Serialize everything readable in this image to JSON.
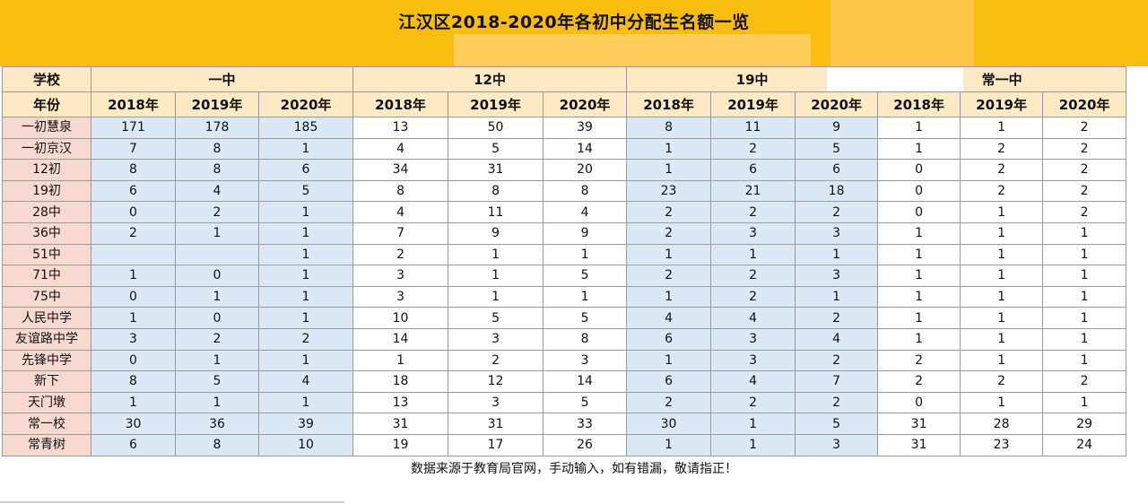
{
  "title": "江汉区2018-2020年各初中分配生名额一览",
  "header": {
    "school_label": "学校",
    "year_label": "年份",
    "groups": [
      "一中",
      "12中",
      "19中",
      "常一中"
    ],
    "years": [
      "2018年",
      "2019年",
      "2020年"
    ]
  },
  "rows": [
    {
      "school": "一初慧泉",
      "v": [
        "171",
        "178",
        "185",
        "13",
        "50",
        "39",
        "8",
        "11",
        "9",
        "1",
        "1",
        "2"
      ]
    },
    {
      "school": "一初京汉",
      "v": [
        "7",
        "8",
        "1",
        "4",
        "5",
        "14",
        "1",
        "2",
        "5",
        "1",
        "2",
        "2"
      ]
    },
    {
      "school": "12初",
      "v": [
        "8",
        "8",
        "6",
        "34",
        "31",
        "20",
        "1",
        "6",
        "6",
        "0",
        "2",
        "2"
      ]
    },
    {
      "school": "19初",
      "v": [
        "6",
        "4",
        "5",
        "8",
        "8",
        "8",
        "23",
        "21",
        "18",
        "0",
        "2",
        "2"
      ]
    },
    {
      "school": "28中",
      "v": [
        "0",
        "2",
        "1",
        "4",
        "11",
        "4",
        "2",
        "2",
        "2",
        "0",
        "1",
        "2"
      ]
    },
    {
      "school": "36中",
      "v": [
        "2",
        "1",
        "1",
        "7",
        "9",
        "9",
        "2",
        "3",
        "3",
        "1",
        "1",
        "1"
      ]
    },
    {
      "school": "51中",
      "v": [
        "",
        "",
        "1",
        "2",
        "1",
        "1",
        "1",
        "1",
        "1",
        "1",
        "1",
        "1"
      ]
    },
    {
      "school": "71中",
      "v": [
        "1",
        "0",
        "1",
        "3",
        "1",
        "5",
        "2",
        "2",
        "3",
        "1",
        "1",
        "1"
      ]
    },
    {
      "school": "75中",
      "v": [
        "0",
        "1",
        "1",
        "3",
        "1",
        "1",
        "1",
        "2",
        "1",
        "1",
        "1",
        "1"
      ]
    },
    {
      "school": "人民中学",
      "v": [
        "1",
        "0",
        "1",
        "10",
        "5",
        "5",
        "4",
        "4",
        "2",
        "1",
        "1",
        "1"
      ]
    },
    {
      "school": "友谊路中学",
      "v": [
        "3",
        "2",
        "2",
        "14",
        "3",
        "8",
        "6",
        "3",
        "4",
        "1",
        "1",
        "1"
      ]
    },
    {
      "school": "先锋中学",
      "v": [
        "0",
        "1",
        "1",
        "1",
        "2",
        "3",
        "1",
        "3",
        "2",
        "2",
        "1",
        "1"
      ]
    },
    {
      "school": "新下",
      "v": [
        "8",
        "5",
        "4",
        "18",
        "12",
        "14",
        "6",
        "4",
        "7",
        "2",
        "2",
        "2"
      ]
    },
    {
      "school": "天门墩",
      "v": [
        "1",
        "1",
        "1",
        "13",
        "3",
        "5",
        "2",
        "2",
        "2",
        "0",
        "1",
        "1"
      ]
    },
    {
      "school": "常一校",
      "v": [
        "30",
        "36",
        "39",
        "31",
        "31",
        "33",
        "30",
        "1",
        "5",
        "31",
        "28",
        "29"
      ]
    },
    {
      "school": "常青树",
      "v": [
        "6",
        "8",
        "10",
        "19",
        "17",
        "26",
        "1",
        "1",
        "3",
        "31",
        "23",
        "24"
      ]
    }
  ],
  "footer": "数据来源于教育局官网，手动输入，如有错漏，敬请指正！"
}
